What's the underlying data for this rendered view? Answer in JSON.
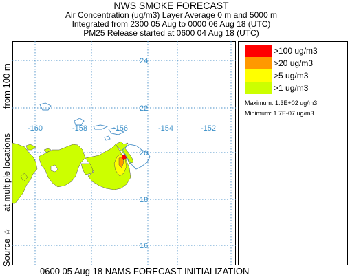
{
  "header": {
    "title": "NWS SMOKE FORECAST",
    "line2": "Air Concentration (ug/m3) Layer Average    0 m and  5000 m",
    "line3": "Integrated from 2300 05 Aug to 0000 06 Aug 18 (UTC)",
    "line4": "PM25 Release started at 0600 04 Aug 18 (UTC)"
  },
  "side_label": {
    "part1": "Source ☆",
    "part2": "at multiple locations",
    "part3": "from   100 m"
  },
  "footer": "0600 05 Aug 18 NAMS FORECAST INITIALIZATION",
  "map": {
    "lat_labels": [
      "24",
      "22",
      "20",
      "18",
      "16"
    ],
    "lon_labels": [
      "-160",
      "-158",
      "-156",
      "-154",
      "-152"
    ],
    "grid_color": "#4a90c8",
    "label_color": "#3a8fc8"
  },
  "legend": {
    "items": [
      {
        "label": ">100 ug/m3",
        "color": "#ff0000"
      },
      {
        "label": ">20 ug/m3",
        "color": "#ff9900"
      },
      {
        "label": ">5 ug/m3",
        "color": "#ffff00"
      },
      {
        "label": ">1 ug/m3",
        "color": "#ccff00"
      }
    ],
    "maximum": "Maximum: 1.3E+02 ug/m3",
    "minimum": "Minimum: 1.7E-07 ug/m3"
  }
}
